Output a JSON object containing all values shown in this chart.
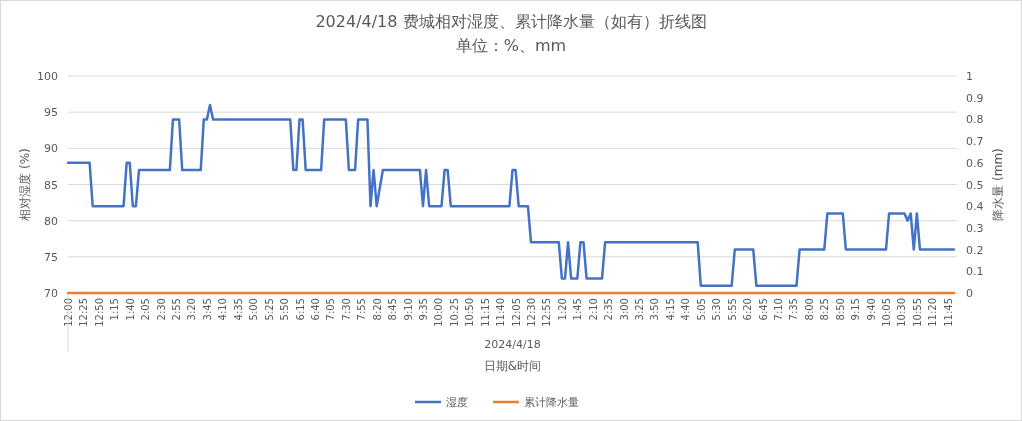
{
  "chart_data": {
    "type": "line",
    "title": "2024/4/18 费城相对湿度、累计降水量（如有）折线图",
    "subtitle": "单位：%、mm",
    "xlabel": "日期&时间",
    "ylabel": "相对湿度 (%)",
    "y2label": "降水量 (mm)",
    "annotations": [
      "2024/4/18"
    ],
    "xlim": [
      "2024-04-18T00:00",
      "2024-04-19T00:00"
    ],
    "xticks": [
      {
        "value": "2024-04-18T00:00",
        "label": "12:00"
      },
      {
        "value": "2024-04-18T00:25",
        "label": "12:25"
      },
      {
        "value": "2024-04-18T00:50",
        "label": "12:50"
      },
      {
        "value": "2024-04-18T01:15",
        "label": "1:15"
      },
      {
        "value": "2024-04-18T01:40",
        "label": "1:40"
      },
      {
        "value": "2024-04-18T02:05",
        "label": "2:05"
      },
      {
        "value": "2024-04-18T02:30",
        "label": "2:30"
      },
      {
        "value": "2024-04-18T02:55",
        "label": "2:55"
      },
      {
        "value": "2024-04-18T03:20",
        "label": "3:20"
      },
      {
        "value": "2024-04-18T03:45",
        "label": "3:45"
      },
      {
        "value": "2024-04-18T04:10",
        "label": "4:10"
      },
      {
        "value": "2024-04-18T04:35",
        "label": "4:35"
      },
      {
        "value": "2024-04-18T05:00",
        "label": "5:00"
      },
      {
        "value": "2024-04-18T05:25",
        "label": "5:25"
      },
      {
        "value": "2024-04-18T05:50",
        "label": "5:50"
      },
      {
        "value": "2024-04-18T06:15",
        "label": "6:15"
      },
      {
        "value": "2024-04-18T06:40",
        "label": "6:40"
      },
      {
        "value": "2024-04-18T07:05",
        "label": "7:05"
      },
      {
        "value": "2024-04-18T07:30",
        "label": "7:30"
      },
      {
        "value": "2024-04-18T07:55",
        "label": "7:55"
      },
      {
        "value": "2024-04-18T08:20",
        "label": "8:20"
      },
      {
        "value": "2024-04-18T08:45",
        "label": "8:45"
      },
      {
        "value": "2024-04-18T09:10",
        "label": "9:10"
      },
      {
        "value": "2024-04-18T09:35",
        "label": "9:35"
      },
      {
        "value": "2024-04-18T10:00",
        "label": "10:00"
      },
      {
        "value": "2024-04-18T10:25",
        "label": "10:25"
      },
      {
        "value": "2024-04-18T10:50",
        "label": "10:50"
      },
      {
        "value": "2024-04-18T11:15",
        "label": "11:15"
      },
      {
        "value": "2024-04-18T11:40",
        "label": "11:40"
      },
      {
        "value": "2024-04-18T12:05",
        "label": "12:05"
      },
      {
        "value": "2024-04-18T12:30",
        "label": "12:30"
      },
      {
        "value": "2024-04-18T12:55",
        "label": "12:55"
      },
      {
        "value": "2024-04-18T13:20",
        "label": "1:20"
      },
      {
        "value": "2024-04-18T13:45",
        "label": "1:45"
      },
      {
        "value": "2024-04-18T14:10",
        "label": "2:10"
      },
      {
        "value": "2024-04-18T14:35",
        "label": "2:35"
      },
      {
        "value": "2024-04-18T15:00",
        "label": "3:00"
      },
      {
        "value": "2024-04-18T15:25",
        "label": "3:25"
      },
      {
        "value": "2024-04-18T15:50",
        "label": "3:50"
      },
      {
        "value": "2024-04-18T16:15",
        "label": "4:15"
      },
      {
        "value": "2024-04-18T16:40",
        "label": "4:40"
      },
      {
        "value": "2024-04-18T17:05",
        "label": "5:05"
      },
      {
        "value": "2024-04-18T17:30",
        "label": "5:30"
      },
      {
        "value": "2024-04-18T17:55",
        "label": "5:55"
      },
      {
        "value": "2024-04-18T18:20",
        "label": "6:20"
      },
      {
        "value": "2024-04-18T18:45",
        "label": "6:45"
      },
      {
        "value": "2024-04-18T19:10",
        "label": "7:10"
      },
      {
        "value": "2024-04-18T19:35",
        "label": "7:35"
      },
      {
        "value": "2024-04-18T20:00",
        "label": "8:00"
      },
      {
        "value": "2024-04-18T20:25",
        "label": "8:25"
      },
      {
        "value": "2024-04-18T20:50",
        "label": "8:50"
      },
      {
        "value": "2024-04-18T21:15",
        "label": "9:15"
      },
      {
        "value": "2024-04-18T21:40",
        "label": "9:40"
      },
      {
        "value": "2024-04-18T22:05",
        "label": "10:05"
      },
      {
        "value": "2024-04-18T22:30",
        "label": "10:30"
      },
      {
        "value": "2024-04-18T22:55",
        "label": "10:55"
      },
      {
        "value": "2024-04-18T23:20",
        "label": "11:20"
      },
      {
        "value": "2024-04-18T23:45",
        "label": "11:45"
      }
    ],
    "ylim": [
      70,
      100
    ],
    "yticks": [
      70,
      75,
      80,
      85,
      90,
      95,
      100
    ],
    "y2lim": [
      0,
      1
    ],
    "y2ticks": [
      0,
      0.1,
      0.2,
      0.3,
      0.4,
      0.5,
      0.6,
      0.7,
      0.8,
      0.9,
      1
    ],
    "grid": "y",
    "legend": "bottom",
    "series": [
      {
        "name": "湿度",
        "color": "#4472c4",
        "x": [
          "2024-04-18T00:00",
          "2024-04-18T00:35",
          "2024-04-18T00:40",
          "2024-04-18T01:30",
          "2024-04-18T01:35",
          "2024-04-18T01:40",
          "2024-04-18T01:45",
          "2024-04-18T01:50",
          "2024-04-18T01:55",
          "2024-04-18T02:45",
          "2024-04-18T02:50",
          "2024-04-18T03:00",
          "2024-04-18T03:05",
          "2024-04-18T03:35",
          "2024-04-18T03:40",
          "2024-04-18T03:45",
          "2024-04-18T03:50",
          "2024-04-18T03:55",
          "2024-04-18T06:00",
          "2024-04-18T06:05",
          "2024-04-18T06:10",
          "2024-04-18T06:15",
          "2024-04-18T06:20",
          "2024-04-18T06:25",
          "2024-04-18T06:50",
          "2024-04-18T06:55",
          "2024-04-18T07:30",
          "2024-04-18T07:35",
          "2024-04-18T07:45",
          "2024-04-18T07:50",
          "2024-04-18T08:05",
          "2024-04-18T08:10",
          "2024-04-18T08:15",
          "2024-04-18T08:20",
          "2024-04-18T08:30",
          "2024-04-18T09:30",
          "2024-04-18T09:35",
          "2024-04-18T09:40",
          "2024-04-18T09:45",
          "2024-04-18T10:05",
          "2024-04-18T10:10",
          "2024-04-18T10:15",
          "2024-04-18T10:20",
          "2024-04-18T11:55",
          "2024-04-18T12:00",
          "2024-04-18T12:05",
          "2024-04-18T12:10",
          "2024-04-18T12:25",
          "2024-04-18T12:30",
          "2024-04-18T13:15",
          "2024-04-18T13:20",
          "2024-04-18T13:25",
          "2024-04-18T13:30",
          "2024-04-18T13:35",
          "2024-04-18T13:45",
          "2024-04-18T13:50",
          "2024-04-18T13:55",
          "2024-04-18T14:00",
          "2024-04-18T14:25",
          "2024-04-18T14:30",
          "2024-04-18T17:00",
          "2024-04-18T17:05",
          "2024-04-18T17:55",
          "2024-04-18T18:00",
          "2024-04-18T18:30",
          "2024-04-18T18:35",
          "2024-04-18T19:40",
          "2024-04-18T19:45",
          "2024-04-18T20:25",
          "2024-04-18T20:30",
          "2024-04-18T20:55",
          "2024-04-18T21:00",
          "2024-04-18T22:05",
          "2024-04-18T22:10",
          "2024-04-18T22:35",
          "2024-04-18T22:40",
          "2024-04-18T22:45",
          "2024-04-18T22:50",
          "2024-04-18T22:55",
          "2024-04-18T23:00",
          "2024-04-18T23:55"
        ],
        "values": [
          88,
          88,
          82,
          82,
          88,
          88,
          82,
          82,
          87,
          87,
          94,
          94,
          87,
          87,
          94,
          94,
          96,
          94,
          94,
          87,
          87,
          94,
          94,
          87,
          87,
          94,
          94,
          87,
          87,
          94,
          94,
          82,
          87,
          82,
          87,
          87,
          82,
          87,
          82,
          82,
          87,
          87,
          82,
          82,
          87,
          87,
          82,
          82,
          77,
          77,
          72,
          72,
          77,
          72,
          72,
          77,
          77,
          72,
          72,
          77,
          77,
          71,
          71,
          76,
          76,
          71,
          71,
          76,
          76,
          81,
          81,
          76,
          76,
          81,
          81,
          80,
          81,
          76,
          81,
          76,
          76
        ]
      },
      {
        "name": "累计降水量",
        "color": "#ed7d31",
        "axis": "y2",
        "x": [
          "2024-04-18T00:00",
          "2024-04-18T23:55"
        ],
        "values": [
          0,
          0
        ]
      }
    ]
  }
}
